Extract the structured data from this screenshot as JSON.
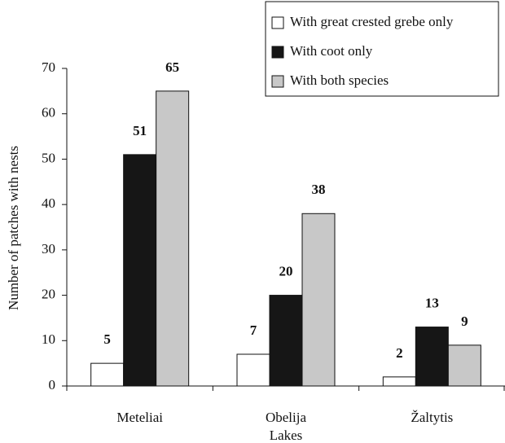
{
  "chart_data": {
    "type": "bar",
    "y_label": "Number of patches with nests",
    "categories": [
      "Meteliai",
      "Obelija Lakes",
      "Žaltytis"
    ],
    "series": [
      {
        "name": "With great crested grebe only",
        "color": "#ffffff",
        "values": [
          5,
          7,
          2
        ]
      },
      {
        "name": "With coot only",
        "color": "#161616",
        "values": [
          51,
          20,
          13
        ]
      },
      {
        "name": "With both species",
        "color": "#c8c8c8",
        "values": [
          65,
          38,
          9
        ]
      }
    ],
    "ylim": [
      0,
      70
    ],
    "yticks": [
      0,
      10,
      20,
      30,
      40,
      50,
      60,
      70
    ],
    "legend": "upper right"
  }
}
